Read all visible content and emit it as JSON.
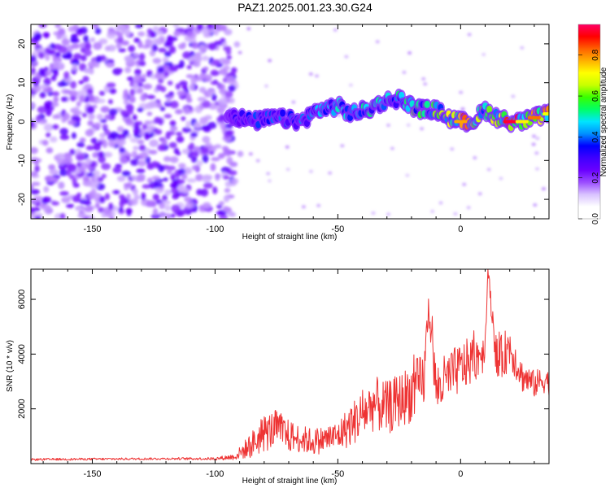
{
  "title": "PAZ1.2025.001.23.30.G24",
  "colors": {
    "series": "#ee3333",
    "frame": "#000000",
    "colormap": [
      "#ffffff",
      "#ffffff",
      "#d9c3ff",
      "#9b4dff",
      "#6a00ff",
      "#3f00ff",
      "#0000ff",
      "#0090ff",
      "#00e5ff",
      "#00ff66",
      "#38ff00",
      "#c8ff00",
      "#ffff00",
      "#ffb000",
      "#ff6000",
      "#ff0000",
      "#ff0066"
    ]
  },
  "chart_data": [
    {
      "type": "heatmap",
      "xlabel": "Height of straight line (km)",
      "ylabel": "Frequency (Hz)",
      "xlim": [
        -175,
        36
      ],
      "ylim": [
        -25,
        25
      ],
      "xticks": [
        -150,
        -100,
        -50,
        0
      ],
      "xtick_labels": [
        "-150",
        "-100",
        "-50",
        "0"
      ],
      "yticks": [
        20,
        10,
        0,
        -10,
        -20
      ],
      "ytick_labels": [
        "20",
        "10",
        "0",
        "-10",
        "-20"
      ],
      "colorbar": {
        "label": "Normalized spectral amplitude",
        "range": [
          0,
          0.95
        ],
        "ticks": [
          0,
          0.2,
          0.4,
          0.6,
          0.8
        ],
        "tick_labels": [
          "0.0",
          "0.2",
          "0.4",
          "0.6",
          "0.8"
        ]
      },
      "noise_region_x": [
        -175,
        -92
      ],
      "signal_ridge": {
        "x": [
          -95,
          -85,
          -75,
          -65,
          -58,
          -50,
          -45,
          -38,
          -32,
          -25,
          -20,
          -15,
          -10,
          -5,
          0,
          5,
          10,
          15,
          20,
          25,
          30,
          36
        ],
        "frequency": [
          2,
          0,
          1,
          0,
          3,
          4,
          2,
          3,
          5,
          6,
          4,
          3,
          3,
          1,
          0,
          0,
          3,
          1,
          0,
          0,
          1,
          2
        ],
        "amplitude": [
          0.2,
          0.28,
          0.3,
          0.3,
          0.35,
          0.38,
          0.4,
          0.42,
          0.38,
          0.45,
          0.5,
          0.5,
          0.55,
          0.6,
          0.78,
          0.6,
          0.55,
          0.6,
          0.92,
          0.72,
          0.82,
          0.7
        ]
      },
      "grid": false
    },
    {
      "type": "line",
      "xlabel": "Height of straight line (km)",
      "ylabel": "SNR (10 * v/v)",
      "xlim": [
        -175,
        36
      ],
      "ylim": [
        0,
        7100
      ],
      "xticks": [
        -150,
        -100,
        -50,
        0
      ],
      "xtick_labels": [
        "-150",
        "-100",
        "-50",
        "0"
      ],
      "yticks": [
        2000,
        4000,
        6000
      ],
      "ytick_labels": [
        "2000",
        "4000",
        "6000"
      ],
      "series": [
        {
          "x": [
            -175,
            -160,
            -140,
            -120,
            -100,
            -92,
            -85,
            -80,
            -75,
            -70,
            -65,
            -60,
            -55,
            -50,
            -45,
            -40,
            -35,
            -30,
            -25,
            -20,
            -15,
            -13,
            -10,
            -5,
            0,
            5,
            10,
            11,
            15,
            20,
            25,
            30,
            35,
            36
          ],
          "y": [
            150,
            160,
            170,
            180,
            180,
            250,
            700,
            1100,
            1300,
            1000,
            900,
            800,
            900,
            1000,
            1400,
            1800,
            2200,
            2000,
            2300,
            2600,
            3000,
            5800,
            2700,
            3100,
            3500,
            3800,
            4200,
            7100,
            3600,
            4300,
            3200,
            2900,
            3100,
            2900
          ],
          "noise_amplitude": [
            40,
            40,
            40,
            40,
            50,
            120,
            500,
            700,
            700,
            600,
            500,
            500,
            500,
            550,
            800,
            900,
            1000,
            1000,
            1000,
            1100,
            1100,
            500,
            1000,
            1000,
            900,
            900,
            800,
            200,
            900,
            800,
            600,
            500,
            500,
            400
          ]
        }
      ],
      "grid": false
    }
  ]
}
